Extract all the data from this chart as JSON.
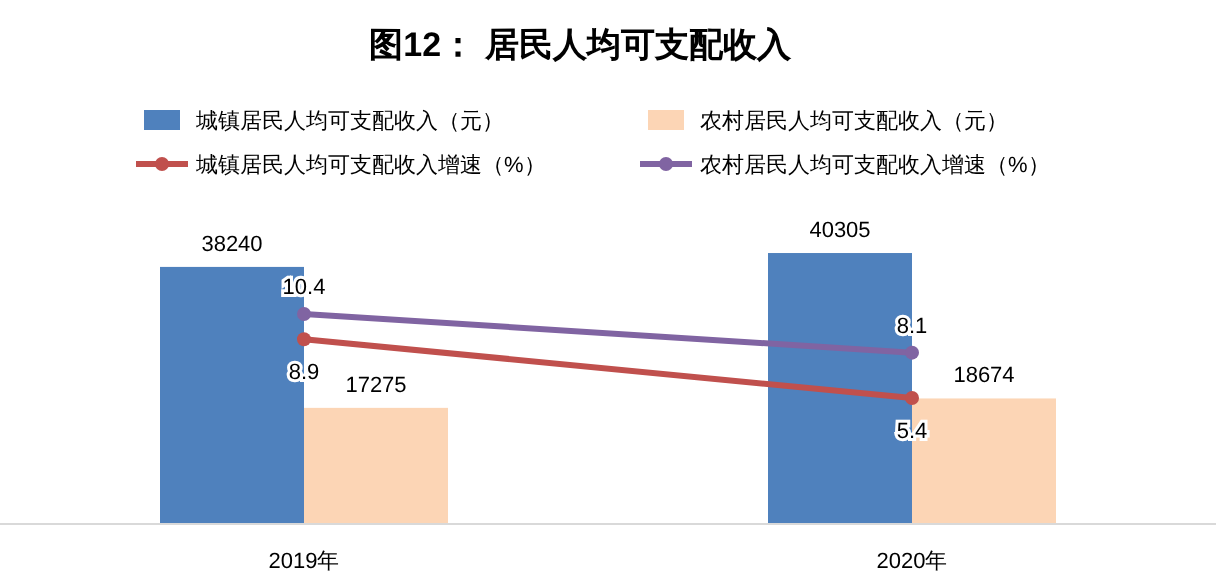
{
  "chart_data": {
    "type": "bar",
    "title": "图12：  居民人均可支配收入",
    "categories": [
      "2019年",
      "2020年"
    ],
    "series": [
      {
        "name": "城镇居民人均可支配收入（元）",
        "color": "#4f81bd",
        "values": [
          38240,
          40305
        ]
      },
      {
        "name": "农村居民人均可支配收入（元）",
        "color": "#fcd5b5",
        "values": [
          17275,
          18674
        ]
      },
      {
        "name": "城镇居民人均可支配收入增速（%）",
        "type": "line",
        "axis": "y2",
        "color": "#c0504d",
        "values": [
          8.9,
          5.4
        ]
      },
      {
        "name": "农村居民人均可支配收入增速（%）",
        "type": "line",
        "axis": "y2",
        "color": "#8064a2",
        "values": [
          10.4,
          8.1
        ]
      }
    ],
    "data_labels": true,
    "legend": "top",
    "marker": "circle",
    "tick_labels": "x"
  }
}
